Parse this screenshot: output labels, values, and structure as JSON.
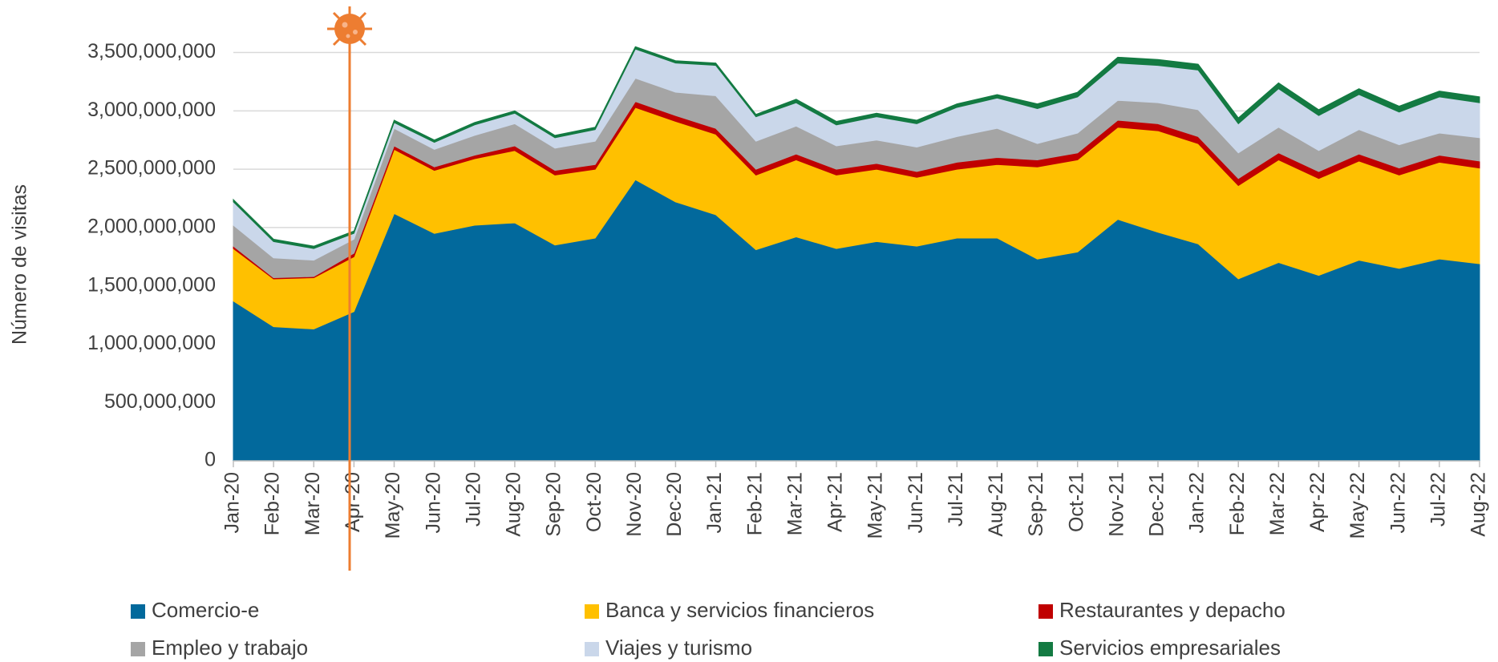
{
  "chart_data": {
    "type": "stacked_area",
    "y_label": "Número de visitas",
    "categories": [
      "Jan-20",
      "Feb-20",
      "Mar-20",
      "Apr-20",
      "May-20",
      "Jun-20",
      "Jul-20",
      "Aug-20",
      "Sep-20",
      "Oct-20",
      "Nov-20",
      "Dec-20",
      "Jan-21",
      "Feb-21",
      "Mar-21",
      "Apr-21",
      "May-21",
      "Jun-21",
      "Jul-21",
      "Aug-21",
      "Sep-21",
      "Oct-21",
      "Nov-21",
      "Dec-21",
      "Jan-22",
      "Feb-22",
      "Mar-22",
      "Apr-22",
      "May-22",
      "Jun-22",
      "Jul-22",
      "Aug-22"
    ],
    "ylim": [
      0,
      3600000000
    ],
    "yticks": [
      0,
      {
        "value": 500000000,
        "label": "500,000,000"
      },
      {
        "value": 1000000000,
        "label": "1,000,000,000"
      },
      {
        "value": 1500000000,
        "label": "1,500,000,000"
      },
      {
        "value": 2000000000,
        "label": "2,000,000,000"
      },
      {
        "value": 2500000000,
        "label": "2,500,000,000"
      },
      {
        "value": 3000000000,
        "label": "3,000,000,000"
      },
      {
        "value": 3500000000,
        "label": "3,500,000,000"
      }
    ],
    "grid": true,
    "legend": "bottom",
    "series": [
      {
        "name": "Comercio-e",
        "color": "#02699c",
        "values": [
          1370000000,
          1150000000,
          1130000000,
          1280000000,
          2120000000,
          1950000000,
          2020000000,
          2040000000,
          1850000000,
          1910000000,
          2410000000,
          2220000000,
          2110000000,
          1810000000,
          1920000000,
          1820000000,
          1880000000,
          1840000000,
          1910000000,
          1910000000,
          1730000000,
          1790000000,
          2070000000,
          1960000000,
          1860000000,
          1560000000,
          1700000000,
          1590000000,
          1720000000,
          1650000000,
          1730000000,
          1690000000
        ]
      },
      {
        "name": "Banca y servicios financieros",
        "color": "#ffc000",
        "values": [
          450000000,
          410000000,
          440000000,
          470000000,
          550000000,
          540000000,
          570000000,
          620000000,
          600000000,
          590000000,
          620000000,
          690000000,
          690000000,
          640000000,
          660000000,
          630000000,
          620000000,
          590000000,
          590000000,
          630000000,
          790000000,
          790000000,
          790000000,
          870000000,
          860000000,
          800000000,
          880000000,
          830000000,
          850000000,
          800000000,
          830000000,
          820000000
        ]
      },
      {
        "name": "Restaurantes y depacho",
        "color": "#c00000",
        "values": [
          20000000,
          10000000,
          10000000,
          30000000,
          30000000,
          30000000,
          30000000,
          40000000,
          40000000,
          40000000,
          50000000,
          50000000,
          50000000,
          50000000,
          50000000,
          50000000,
          50000000,
          50000000,
          60000000,
          60000000,
          60000000,
          60000000,
          60000000,
          60000000,
          60000000,
          60000000,
          60000000,
          60000000,
          60000000,
          60000000,
          60000000,
          60000000
        ]
      },
      {
        "name": "Empleo y trabajo",
        "color": "#a5a5a5",
        "values": [
          180000000,
          170000000,
          140000000,
          120000000,
          150000000,
          150000000,
          170000000,
          190000000,
          190000000,
          200000000,
          200000000,
          200000000,
          280000000,
          240000000,
          240000000,
          200000000,
          200000000,
          210000000,
          220000000,
          250000000,
          140000000,
          170000000,
          170000000,
          180000000,
          230000000,
          220000000,
          220000000,
          180000000,
          210000000,
          200000000,
          190000000,
          200000000
        ]
      },
      {
        "name": "Viajes y turismo",
        "color": "#cad7ea",
        "values": [
          200000000,
          140000000,
          100000000,
          50000000,
          50000000,
          60000000,
          90000000,
          90000000,
          90000000,
          100000000,
          250000000,
          250000000,
          260000000,
          210000000,
          200000000,
          180000000,
          200000000,
          200000000,
          250000000,
          260000000,
          300000000,
          310000000,
          320000000,
          320000000,
          340000000,
          250000000,
          330000000,
          300000000,
          300000000,
          280000000,
          310000000,
          300000000
        ]
      },
      {
        "name": "Servicios empresariales",
        "color": "#137a42",
        "values": [
          20000000,
          20000000,
          20000000,
          20000000,
          20000000,
          20000000,
          20000000,
          20000000,
          20000000,
          20000000,
          20000000,
          20000000,
          20000000,
          20000000,
          30000000,
          30000000,
          30000000,
          30000000,
          30000000,
          30000000,
          40000000,
          40000000,
          50000000,
          50000000,
          50000000,
          50000000,
          50000000,
          50000000,
          50000000,
          50000000,
          50000000,
          50000000
        ]
      }
    ]
  }
}
